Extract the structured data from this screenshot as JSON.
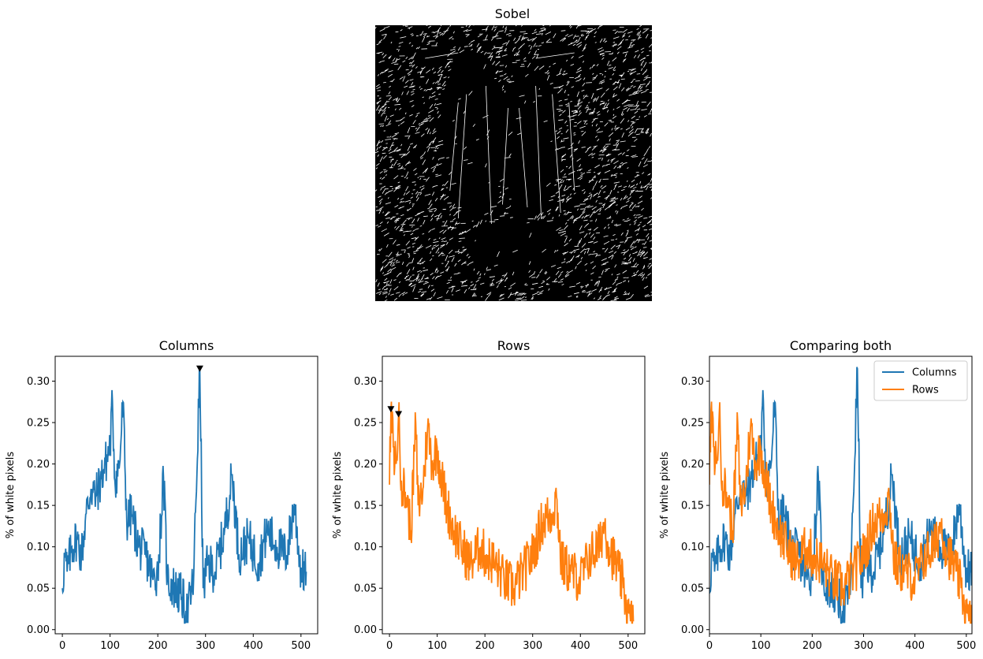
{
  "figure": {
    "sobel_title": "Sobel"
  },
  "colors": {
    "columns": "#1f77b4",
    "rows": "#ff7f0e",
    "marker": "#000000",
    "image_bg": "#000000",
    "edge": "#ffffff"
  },
  "icons": {
    "peak_marker": "down-triangle",
    "image": "sobel-edge-image"
  },
  "chart_data": [
    {
      "type": "line",
      "title": "Columns",
      "ylabel": "% of white pixels",
      "xlim": [
        -15,
        535
      ],
      "ylim": [
        -0.005,
        0.33
      ],
      "xticks": [
        0,
        100,
        200,
        300,
        400,
        500
      ],
      "xtick_labels": [
        "0",
        "100",
        "200",
        "300",
        "400",
        "500"
      ],
      "yticks": [
        0.0,
        0.05,
        0.1,
        0.15,
        0.2,
        0.25,
        0.3
      ],
      "ytick_labels": [
        "0.00",
        "0.05",
        "0.10",
        "0.15",
        "0.20",
        "0.25",
        "0.30"
      ],
      "series": [
        {
          "key": "columns",
          "x": [
            0,
            5,
            10,
            20,
            30,
            40,
            50,
            60,
            70,
            80,
            90,
            100,
            105,
            110,
            120,
            127,
            135,
            145,
            160,
            175,
            190,
            200,
            212,
            220,
            235,
            250,
            262,
            275,
            288,
            295,
            305,
            320,
            340,
            356,
            370,
            390,
            410,
            430,
            450,
            470,
            486,
            500,
            511
          ],
          "values": [
            0.05,
            0.09,
            0.07,
            0.1,
            0.11,
            0.09,
            0.14,
            0.17,
            0.16,
            0.18,
            0.2,
            0.22,
            0.276,
            0.18,
            0.2,
            0.275,
            0.13,
            0.14,
            0.1,
            0.09,
            0.06,
            0.07,
            0.184,
            0.06,
            0.05,
            0.04,
            0.02,
            0.06,
            0.315,
            0.05,
            0.08,
            0.07,
            0.12,
            0.187,
            0.09,
            0.11,
            0.08,
            0.12,
            0.1,
            0.09,
            0.152,
            0.07,
            0.07
          ]
        }
      ],
      "peaks": [
        {
          "x": 288,
          "y": 0.315
        }
      ]
    },
    {
      "type": "line",
      "title": "Rows",
      "ylabel": "% of white pixels",
      "xlim": [
        -15,
        535
      ],
      "ylim": [
        -0.005,
        0.33
      ],
      "xticks": [
        0,
        100,
        200,
        300,
        400,
        500
      ],
      "xtick_labels": [
        "0",
        "100",
        "200",
        "300",
        "400",
        "500"
      ],
      "yticks": [
        0.0,
        0.05,
        0.1,
        0.15,
        0.2,
        0.25,
        0.3
      ],
      "ytick_labels": [
        "0.00",
        "0.05",
        "0.10",
        "0.15",
        "0.20",
        "0.25",
        "0.30"
      ],
      "series": [
        {
          "key": "rows",
          "x": [
            0,
            3,
            8,
            14,
            19,
            25,
            35,
            40,
            45,
            55,
            60,
            70,
            80,
            90,
            100,
            110,
            120,
            135,
            150,
            170,
            190,
            200,
            220,
            240,
            260,
            280,
            300,
            320,
            340,
            350,
            360,
            380,
            400,
            420,
            440,
            450,
            460,
            480,
            490,
            500,
            505,
            511
          ],
          "values": [
            0.175,
            0.265,
            0.22,
            0.2,
            0.26,
            0.18,
            0.16,
            0.14,
            0.12,
            0.25,
            0.15,
            0.17,
            0.245,
            0.2,
            0.22,
            0.18,
            0.15,
            0.12,
            0.1,
            0.08,
            0.1,
            0.09,
            0.08,
            0.06,
            0.05,
            0.07,
            0.09,
            0.13,
            0.14,
            0.16,
            0.08,
            0.07,
            0.06,
            0.09,
            0.1,
            0.13,
            0.1,
            0.07,
            0.05,
            0.02,
            0.01,
            0.01
          ]
        }
      ],
      "peaks": [
        {
          "x": 3,
          "y": 0.266
        },
        {
          "x": 19,
          "y": 0.26
        }
      ]
    },
    {
      "type": "line",
      "title": "Comparing both",
      "ylabel": "% of white pixels",
      "xlim": [
        0,
        511
      ],
      "ylim": [
        -0.005,
        0.33
      ],
      "xticks": [
        0,
        100,
        200,
        300,
        400,
        500
      ],
      "xtick_labels": [
        "0",
        "100",
        "200",
        "300",
        "400",
        "500"
      ],
      "yticks": [
        0.0,
        0.05,
        0.1,
        0.15,
        0.2,
        0.25,
        0.3
      ],
      "ytick_labels": [
        "0.00",
        "0.05",
        "0.10",
        "0.15",
        "0.20",
        "0.25",
        "0.30"
      ],
      "legend": {
        "position": "top-right",
        "entries": [
          "Columns",
          "Rows"
        ]
      },
      "series": [
        {
          "name": "Columns",
          "key": "columns",
          "from": 0
        },
        {
          "name": "Rows",
          "key": "rows",
          "from": 1
        }
      ]
    }
  ]
}
